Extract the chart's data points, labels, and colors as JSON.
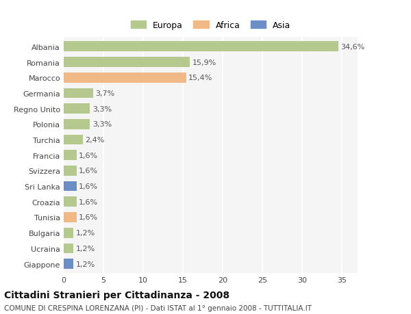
{
  "countries": [
    "Albania",
    "Romania",
    "Marocco",
    "Germania",
    "Regno Unito",
    "Polonia",
    "Turchia",
    "Francia",
    "Svizzera",
    "Sri Lanka",
    "Croazia",
    "Tunisia",
    "Bulgaria",
    "Ucraina",
    "Giappone"
  ],
  "values": [
    34.6,
    15.9,
    15.4,
    3.7,
    3.3,
    3.3,
    2.4,
    1.6,
    1.6,
    1.6,
    1.6,
    1.6,
    1.2,
    1.2,
    1.2
  ],
  "labels": [
    "34,6%",
    "15,9%",
    "15,4%",
    "3,7%",
    "3,3%",
    "3,3%",
    "2,4%",
    "1,6%",
    "1,6%",
    "1,6%",
    "1,6%",
    "1,6%",
    "1,2%",
    "1,2%",
    "1,2%"
  ],
  "continents": [
    "Europa",
    "Europa",
    "Africa",
    "Europa",
    "Europa",
    "Europa",
    "Europa",
    "Europa",
    "Europa",
    "Asia",
    "Europa",
    "Africa",
    "Europa",
    "Europa",
    "Asia"
  ],
  "colors": {
    "Europa": "#b5c98e",
    "Africa": "#f0b985",
    "Asia": "#6b8fc4"
  },
  "title": "Cittadini Stranieri per Cittadinanza - 2008",
  "subtitle": "COMUNE DI CRESPINA LORENZANA (PI) - Dati ISTAT al 1° gennaio 2008 - TUTTITALIA.IT",
  "xlim": [
    0,
    37
  ],
  "xticks": [
    0,
    5,
    10,
    15,
    20,
    25,
    30,
    35
  ],
  "background_color": "#ffffff",
  "plot_bg_color": "#f5f5f5",
  "bar_height": 0.65,
  "grid_color": "#ffffff",
  "title_fontsize": 10,
  "subtitle_fontsize": 7.5,
  "tick_fontsize": 8,
  "label_fontsize": 8
}
